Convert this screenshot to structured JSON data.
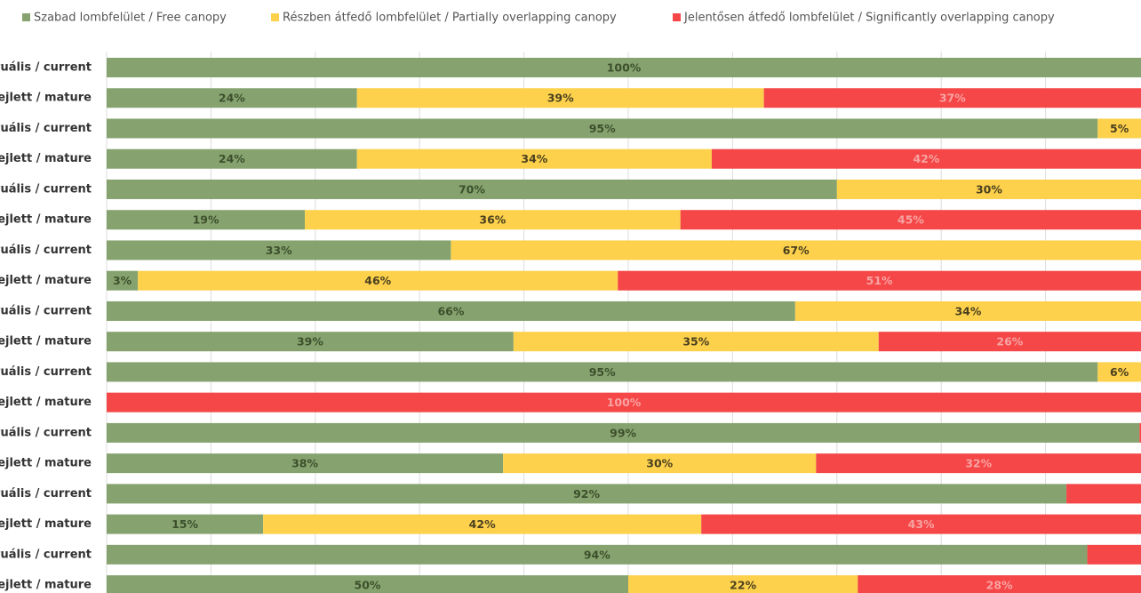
{
  "chart_data": {
    "type": "stacked-bar-horizontal",
    "categories": [
      "tuális / current",
      "ejlett / mature",
      "tuális / current",
      "ejlett / mature",
      "tuális / current",
      "ejlett / mature",
      "tuális / current",
      "ejlett / mature",
      "tuális / current",
      "ejlett / mature",
      "tuális / current",
      "ejlett / mature",
      "tuális / current",
      "ejlett / mature",
      "tuális / current",
      "ejlett / mature",
      "tuális / current",
      "ejlett / mature"
    ],
    "series": [
      {
        "name": "Szabad lombfelület / Free canopy",
        "color": "#86a36f",
        "values": [
          100,
          24,
          95,
          24,
          70,
          19,
          33,
          3,
          66,
          39,
          95,
          0,
          99,
          38,
          92,
          15,
          94,
          50
        ],
        "value_labels": [
          "100%",
          "24%",
          "95%",
          "24%",
          "70%",
          "19%",
          "33%",
          "3%",
          "66%",
          "39%",
          "95%",
          null,
          "99%",
          "38%",
          "92%",
          "15%",
          "94%",
          "50%"
        ]
      },
      {
        "name": "Részben átfedő lombfelület / Partially overlapping canopy",
        "color": "#fdd14b",
        "values": [
          0,
          39,
          5,
          34,
          30,
          36,
          67,
          46,
          34,
          35,
          6,
          0,
          0,
          30,
          0,
          42,
          0,
          22
        ],
        "value_labels": [
          null,
          "39%",
          "5%",
          "34%",
          "30%",
          "36%",
          "67%",
          "46%",
          "34%",
          "35%",
          "6%",
          null,
          null,
          "30%",
          null,
          "42%",
          null,
          "22%"
        ]
      },
      {
        "name": "Jelentősen átfedő lombfelület / Significantly overlapping canopy",
        "color": "#f54747",
        "values": [
          0,
          37,
          0,
          42,
          0,
          45,
          0,
          51,
          0,
          26,
          0,
          100,
          1,
          32,
          8,
          43,
          6,
          28
        ],
        "value_labels": [
          null,
          "37%",
          null,
          "42%",
          null,
          "45%",
          null,
          "51%",
          null,
          "26%",
          null,
          "100%",
          null,
          "32%",
          null,
          "43%",
          null,
          "28%"
        ]
      }
    ],
    "xlim": [
      0,
      100
    ],
    "xticks": [
      0,
      10,
      20,
      30,
      40,
      50,
      60,
      70,
      80,
      90,
      100
    ],
    "grid": true,
    "legend": "top"
  }
}
